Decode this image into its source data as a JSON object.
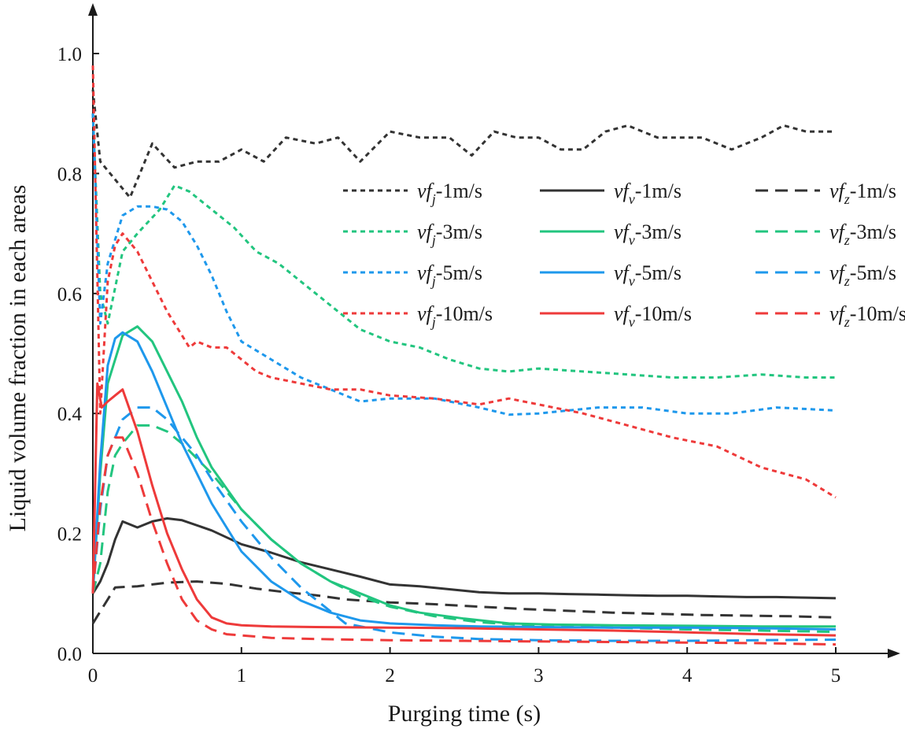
{
  "chart_data": {
    "type": "line",
    "title": "",
    "xlabel": "Purging time (s)",
    "ylabel": "Liquid volume fraction in each areas",
    "xlim": [
      0,
      5
    ],
    "ylim": [
      0,
      1.0
    ],
    "xticks": [
      0,
      1,
      2,
      3,
      4,
      5
    ],
    "yticks": [
      0.0,
      0.2,
      0.4,
      0.6,
      0.8,
      1.0
    ],
    "xtick_labels": [
      "0",
      "1",
      "2",
      "3",
      "4",
      "5"
    ],
    "ytick_labels": [
      "0.0",
      "0.2",
      "0.4",
      "0.6",
      "0.8",
      "1.0"
    ],
    "grid": false,
    "legend_position": "top-right",
    "series": [
      {
        "name": "vf_j-1m/s",
        "base": "vf",
        "sub": "j",
        "suffix": "-1m/s",
        "color": "#333333",
        "dash": "dot",
        "x": [
          0,
          0.05,
          0.15,
          0.25,
          0.4,
          0.55,
          0.7,
          0.85,
          1.0,
          1.15,
          1.3,
          1.5,
          1.65,
          1.8,
          2.0,
          2.2,
          2.4,
          2.55,
          2.7,
          2.85,
          3.0,
          3.15,
          3.3,
          3.45,
          3.6,
          3.8,
          3.95,
          4.1,
          4.3,
          4.5,
          4.65,
          4.8,
          5.0
        ],
        "values": [
          0.94,
          0.82,
          0.79,
          0.76,
          0.85,
          0.81,
          0.82,
          0.82,
          0.84,
          0.82,
          0.86,
          0.85,
          0.86,
          0.82,
          0.87,
          0.86,
          0.86,
          0.83,
          0.87,
          0.86,
          0.86,
          0.84,
          0.84,
          0.87,
          0.88,
          0.86,
          0.86,
          0.86,
          0.84,
          0.86,
          0.88,
          0.87,
          0.87
        ]
      },
      {
        "name": "vf_v-1m/s",
        "base": "vf",
        "sub": "v",
        "suffix": "-1m/s",
        "color": "#333333",
        "dash": "solid",
        "x": [
          0,
          0.05,
          0.1,
          0.15,
          0.2,
          0.3,
          0.4,
          0.5,
          0.6,
          0.8,
          1.0,
          1.2,
          1.4,
          1.6,
          1.8,
          2.0,
          2.2,
          2.4,
          2.6,
          2.8,
          3.0,
          3.2,
          3.4,
          3.6,
          3.8,
          4.0,
          4.2,
          4.4,
          4.6,
          4.8,
          5.0
        ],
        "values": [
          0.1,
          0.12,
          0.15,
          0.19,
          0.22,
          0.21,
          0.22,
          0.225,
          0.222,
          0.205,
          0.182,
          0.168,
          0.152,
          0.14,
          0.128,
          0.115,
          0.112,
          0.107,
          0.102,
          0.1,
          0.1,
          0.099,
          0.098,
          0.097,
          0.096,
          0.096,
          0.095,
          0.094,
          0.094,
          0.093,
          0.092
        ]
      },
      {
        "name": "vf_z-1m/s",
        "base": "vf",
        "sub": "z",
        "suffix": "-1m/s",
        "color": "#333333",
        "dash": "dash",
        "x": [
          0,
          0.05,
          0.1,
          0.15,
          0.3,
          0.5,
          0.7,
          0.9,
          1.1,
          1.3,
          1.5,
          1.7,
          2.0,
          2.3,
          2.6,
          2.9,
          3.2,
          3.5,
          3.8,
          4.1,
          4.4,
          4.7,
          5.0
        ],
        "values": [
          0.05,
          0.07,
          0.09,
          0.11,
          0.112,
          0.118,
          0.12,
          0.116,
          0.108,
          0.102,
          0.097,
          0.09,
          0.085,
          0.082,
          0.078,
          0.074,
          0.071,
          0.068,
          0.066,
          0.064,
          0.063,
          0.062,
          0.06
        ]
      },
      {
        "name": "vf_j-3m/s",
        "base": "vf",
        "sub": "j",
        "suffix": "-3m/s",
        "color": "#22c57f",
        "dash": "dot",
        "x": [
          0,
          0.05,
          0.1,
          0.2,
          0.3,
          0.45,
          0.55,
          0.65,
          0.8,
          0.95,
          1.1,
          1.25,
          1.4,
          1.6,
          1.8,
          2.0,
          2.2,
          2.4,
          2.6,
          2.8,
          3.0,
          3.3,
          3.6,
          3.9,
          4.2,
          4.5,
          4.8,
          5.0
        ],
        "values": [
          0.9,
          0.6,
          0.55,
          0.67,
          0.7,
          0.74,
          0.78,
          0.77,
          0.74,
          0.71,
          0.67,
          0.65,
          0.62,
          0.58,
          0.54,
          0.52,
          0.51,
          0.49,
          0.475,
          0.47,
          0.475,
          0.47,
          0.465,
          0.46,
          0.46,
          0.465,
          0.46,
          0.46
        ]
      },
      {
        "name": "vf_v-3m/s",
        "base": "vf",
        "sub": "v",
        "suffix": "-3m/s",
        "color": "#22c57f",
        "dash": "solid",
        "x": [
          0,
          0.05,
          0.1,
          0.2,
          0.3,
          0.4,
          0.5,
          0.6,
          0.7,
          0.8,
          1.0,
          1.2,
          1.4,
          1.6,
          1.8,
          2.0,
          2.2,
          2.5,
          2.8,
          3.1,
          3.5,
          4.0,
          4.5,
          5.0
        ],
        "values": [
          0.1,
          0.3,
          0.45,
          0.53,
          0.545,
          0.52,
          0.47,
          0.42,
          0.36,
          0.31,
          0.24,
          0.19,
          0.15,
          0.12,
          0.1,
          0.08,
          0.068,
          0.058,
          0.05,
          0.048,
          0.047,
          0.046,
          0.045,
          0.045
        ]
      },
      {
        "name": "vf_z-3m/s",
        "base": "vf",
        "sub": "z",
        "suffix": "-3m/s",
        "color": "#22c57f",
        "dash": "dash",
        "x": [
          0,
          0.05,
          0.1,
          0.15,
          0.2,
          0.3,
          0.4,
          0.5,
          0.6,
          0.8,
          1.0,
          1.2,
          1.4,
          1.6,
          1.8,
          2.0,
          2.3,
          2.6,
          3.0,
          3.5,
          4.0,
          4.5,
          5.0
        ],
        "values": [
          0.1,
          0.15,
          0.27,
          0.33,
          0.35,
          0.38,
          0.38,
          0.37,
          0.35,
          0.3,
          0.24,
          0.19,
          0.15,
          0.12,
          0.095,
          0.078,
          0.062,
          0.052,
          0.046,
          0.043,
          0.04,
          0.038,
          0.036
        ]
      },
      {
        "name": "vf_j-5m/s",
        "base": "vf",
        "sub": "j",
        "suffix": "-5m/s",
        "color": "#1e98ec",
        "dash": "dot",
        "x": [
          0,
          0.05,
          0.1,
          0.2,
          0.3,
          0.4,
          0.5,
          0.6,
          0.7,
          0.8,
          0.9,
          1.0,
          1.2,
          1.4,
          1.6,
          1.8,
          2.0,
          2.3,
          2.6,
          2.8,
          3.0,
          3.4,
          3.7,
          4.0,
          4.3,
          4.6,
          5.0
        ],
        "values": [
          0.9,
          0.55,
          0.65,
          0.73,
          0.745,
          0.745,
          0.74,
          0.72,
          0.68,
          0.63,
          0.57,
          0.52,
          0.49,
          0.46,
          0.44,
          0.42,
          0.425,
          0.425,
          0.41,
          0.398,
          0.4,
          0.41,
          0.41,
          0.4,
          0.4,
          0.41,
          0.405
        ]
      },
      {
        "name": "vf_v-5m/s",
        "base": "vf",
        "sub": "v",
        "suffix": "-5m/s",
        "color": "#1e98ec",
        "dash": "solid",
        "x": [
          0,
          0.05,
          0.1,
          0.15,
          0.2,
          0.3,
          0.4,
          0.5,
          0.6,
          0.7,
          0.8,
          1.0,
          1.2,
          1.4,
          1.6,
          1.8,
          2.0,
          2.3,
          2.6,
          3.0,
          3.5,
          4.0,
          4.5,
          5.0
        ],
        "values": [
          0.1,
          0.32,
          0.48,
          0.525,
          0.535,
          0.52,
          0.47,
          0.41,
          0.35,
          0.3,
          0.25,
          0.17,
          0.12,
          0.088,
          0.068,
          0.055,
          0.05,
          0.047,
          0.045,
          0.044,
          0.043,
          0.043,
          0.042,
          0.04
        ]
      },
      {
        "name": "vf_z-5m/s",
        "base": "vf",
        "sub": "z",
        "suffix": "-5m/s",
        "color": "#1e98ec",
        "dash": "dash",
        "x": [
          0,
          0.05,
          0.1,
          0.2,
          0.3,
          0.4,
          0.5,
          0.6,
          0.7,
          0.8,
          1.0,
          1.2,
          1.4,
          1.6,
          1.7,
          2.0,
          2.3,
          2.6,
          3.0,
          3.5,
          4.0,
          4.5,
          5.0
        ],
        "values": [
          0.1,
          0.24,
          0.33,
          0.39,
          0.41,
          0.41,
          0.39,
          0.36,
          0.33,
          0.29,
          0.22,
          0.16,
          0.11,
          0.07,
          0.05,
          0.035,
          0.028,
          0.024,
          0.022,
          0.021,
          0.021,
          0.022,
          0.023
        ]
      },
      {
        "name": "vf_j-10m/s",
        "base": "vf",
        "sub": "j",
        "suffix": "-10m/s",
        "color": "#ee3a3a",
        "dash": "dot",
        "x": [
          0,
          0.05,
          0.1,
          0.15,
          0.2,
          0.3,
          0.4,
          0.5,
          0.6,
          0.65,
          0.7,
          0.8,
          0.9,
          1.0,
          1.1,
          1.2,
          1.4,
          1.6,
          1.8,
          2.0,
          2.3,
          2.6,
          2.8,
          3.0,
          3.3,
          3.6,
          3.9,
          4.2,
          4.5,
          4.8,
          5.0
        ],
        "values": [
          0.98,
          0.4,
          0.62,
          0.68,
          0.7,
          0.67,
          0.62,
          0.57,
          0.53,
          0.51,
          0.52,
          0.51,
          0.51,
          0.49,
          0.47,
          0.46,
          0.45,
          0.44,
          0.44,
          0.43,
          0.425,
          0.415,
          0.425,
          0.415,
          0.4,
          0.38,
          0.36,
          0.345,
          0.31,
          0.29,
          0.26
        ]
      },
      {
        "name": "vf_v-10m/s",
        "base": "vf",
        "sub": "v",
        "suffix": "-10m/s",
        "color": "#ee3a3a",
        "dash": "solid",
        "x": [
          0,
          0.03,
          0.06,
          0.1,
          0.15,
          0.2,
          0.3,
          0.4,
          0.5,
          0.6,
          0.7,
          0.8,
          0.9,
          1.0,
          1.2,
          1.5,
          2.0,
          2.5,
          3.0,
          3.5,
          4.0,
          4.5,
          5.0
        ],
        "values": [
          0.1,
          0.45,
          0.41,
          0.42,
          0.43,
          0.44,
          0.37,
          0.28,
          0.2,
          0.14,
          0.09,
          0.06,
          0.05,
          0.047,
          0.045,
          0.044,
          0.043,
          0.042,
          0.04,
          0.038,
          0.035,
          0.032,
          0.03
        ]
      },
      {
        "name": "vf_z-10m/s",
        "base": "vf",
        "sub": "z",
        "suffix": "-10m/s",
        "color": "#ee3a3a",
        "dash": "dash",
        "x": [
          0,
          0.05,
          0.1,
          0.15,
          0.2,
          0.3,
          0.4,
          0.5,
          0.6,
          0.7,
          0.8,
          0.9,
          1.0,
          1.2,
          1.5,
          2.0,
          2.5,
          3.0,
          3.5,
          4.0,
          4.5,
          5.0
        ],
        "values": [
          0.1,
          0.25,
          0.33,
          0.36,
          0.36,
          0.3,
          0.22,
          0.15,
          0.09,
          0.055,
          0.04,
          0.032,
          0.03,
          0.026,
          0.024,
          0.022,
          0.021,
          0.02,
          0.019,
          0.018,
          0.017,
          0.015
        ]
      }
    ]
  }
}
